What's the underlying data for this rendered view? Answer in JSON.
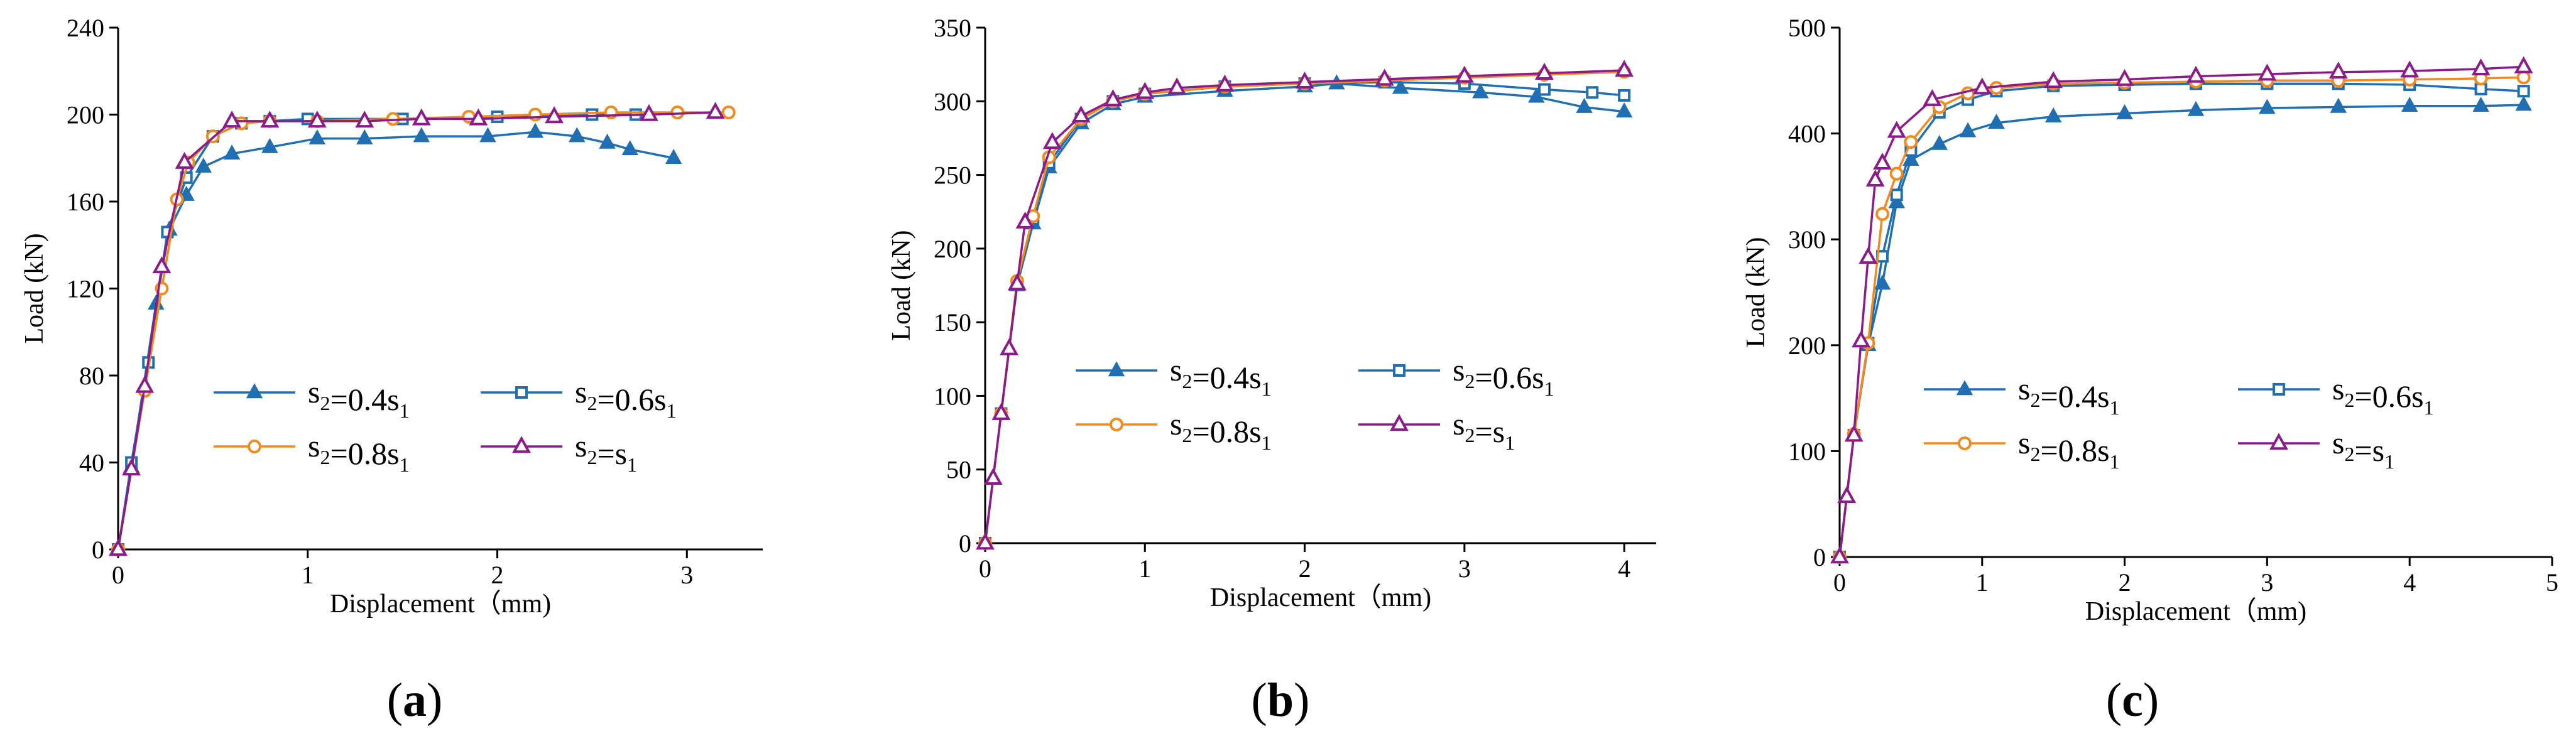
{
  "figure": {
    "panel_labels": [
      "(a)",
      "(b)",
      "(c)"
    ]
  },
  "legend_labels": [
    "s2=0.4s1",
    "s2=0.6s1",
    "s2=0.8s1",
    "s2=s1"
  ],
  "series_colors": [
    "#1f6fb2",
    "#1f6fb2",
    "#f28a1e",
    "#8b1a8b"
  ],
  "series_markers": [
    "filled-triangle",
    "open-square",
    "open-circle",
    "open-triangle"
  ],
  "chart_data": [
    {
      "type": "line",
      "panel": "(a)",
      "xlabel": "Displacement（mm)",
      "ylabel": "Load (kN)",
      "xlim": [
        0,
        3.4
      ],
      "ylim": [
        0,
        240
      ],
      "xticks": [
        0,
        1,
        2,
        3
      ],
      "yticks": [
        0,
        40,
        80,
        120,
        160,
        200,
        240
      ],
      "series": [
        {
          "name": "s2=0.4s1",
          "x": [
            0,
            0.07,
            0.2,
            0.27,
            0.36,
            0.45,
            0.6,
            0.8,
            1.05,
            1.3,
            1.6,
            1.95,
            2.2,
            2.42,
            2.58,
            2.7,
            2.93
          ],
          "y": [
            0,
            38,
            113,
            147,
            163,
            176,
            182,
            185,
            189,
            189,
            190,
            190,
            192,
            190,
            187,
            184,
            180
          ]
        },
        {
          "name": "s2=0.6s1",
          "x": [
            0,
            0.07,
            0.16,
            0.26,
            0.36,
            0.5,
            0.65,
            0.8,
            1.0,
            1.5,
            2.0,
            2.5,
            2.73
          ],
          "y": [
            0,
            40,
            86,
            146,
            171,
            190,
            196,
            197,
            198,
            198,
            199,
            200,
            200
          ]
        },
        {
          "name": "s2=0.8s1",
          "x": [
            0,
            0.14,
            0.23,
            0.31,
            0.37,
            0.5,
            0.65,
            0.8,
            1.05,
            1.45,
            1.85,
            2.2,
            2.6,
            2.95,
            3.22
          ],
          "y": [
            0,
            73,
            120,
            161,
            178,
            190,
            196,
            197,
            197,
            198,
            199,
            200,
            201,
            201,
            201
          ]
        },
        {
          "name": "s2=s1",
          "x": [
            0,
            0.07,
            0.14,
            0.23,
            0.35,
            0.6,
            0.8,
            1.05,
            1.3,
            1.6,
            1.9,
            2.3,
            2.8,
            3.15
          ],
          "y": [
            0,
            37,
            75,
            130,
            178,
            197,
            197,
            197,
            197,
            198,
            198,
            199,
            200,
            201
          ]
        }
      ],
      "legend_location": "right-middle"
    },
    {
      "type": "line",
      "panel": "(b)",
      "xlabel": "Displacement（mm)",
      "ylabel": "Load (kN)",
      "xlim": [
        0,
        4.2
      ],
      "ylim": [
        0,
        350
      ],
      "xticks": [
        0,
        1,
        2,
        3,
        4
      ],
      "yticks": [
        0,
        50,
        100,
        150,
        200,
        250,
        300,
        350
      ],
      "series": [
        {
          "name": "s2=0.4s1",
          "x": [
            0,
            0.1,
            0.2,
            0.3,
            0.4,
            0.6,
            0.8,
            1.0,
            1.5,
            2.0,
            2.2,
            2.6,
            3.1,
            3.45,
            3.75,
            4.0
          ],
          "y": [
            0,
            88,
            175,
            217,
            255,
            285,
            298,
            303,
            307,
            310,
            312,
            309,
            306,
            303,
            296,
            293
          ]
        },
        {
          "name": "s2=0.6s1",
          "x": [
            0,
            0.1,
            0.2,
            0.3,
            0.4,
            0.6,
            0.8,
            1.0,
            1.5,
            2.0,
            2.5,
            3.0,
            3.5,
            3.8,
            4.0
          ],
          "y": [
            0,
            88,
            176,
            220,
            258,
            288,
            300,
            305,
            310,
            312,
            313,
            312,
            308,
            306,
            304
          ]
        },
        {
          "name": "s2=0.8s1",
          "x": [
            0,
            0.1,
            0.2,
            0.3,
            0.4,
            0.6,
            0.8,
            1.0,
            1.5,
            2.0,
            2.5,
            3.0,
            3.5,
            4.0
          ],
          "y": [
            0,
            88,
            178,
            222,
            262,
            288,
            300,
            305,
            310,
            312,
            314,
            316,
            318,
            320
          ]
        },
        {
          "name": "s2=s1",
          "x": [
            0,
            0.05,
            0.1,
            0.15,
            0.2,
            0.25,
            0.42,
            0.6,
            0.8,
            1.0,
            1.2,
            1.5,
            2.0,
            2.5,
            3.0,
            3.5,
            4.0
          ],
          "y": [
            0,
            44,
            88,
            132,
            176,
            218,
            272,
            290,
            301,
            306,
            309,
            311,
            313,
            315,
            317,
            319,
            321
          ]
        }
      ],
      "legend_location": "right-middle"
    },
    {
      "type": "line",
      "panel": "(c)",
      "xlabel": "Displacement（mm)",
      "ylabel": "Load (kN)",
      "xlim": [
        0,
        5
      ],
      "ylim": [
        0,
        500
      ],
      "xticks": [
        0,
        1,
        2,
        3,
        4,
        5
      ],
      "yticks": [
        0,
        100,
        200,
        300,
        400,
        500
      ],
      "series": [
        {
          "name": "s2=0.4s1",
          "x": [
            0,
            0.1,
            0.2,
            0.3,
            0.4,
            0.5,
            0.7,
            0.9,
            1.1,
            1.5,
            2.0,
            2.5,
            3.0,
            3.5,
            4.0,
            4.5,
            4.8
          ],
          "y": [
            0,
            115,
            200,
            258,
            335,
            375,
            390,
            402,
            410,
            416,
            419,
            422,
            424,
            425,
            426,
            426,
            427
          ]
        },
        {
          "name": "s2=0.6s1",
          "x": [
            0,
            0.1,
            0.2,
            0.3,
            0.4,
            0.5,
            0.7,
            0.9,
            1.1,
            1.5,
            2.0,
            2.5,
            3.0,
            3.5,
            4.0,
            4.5,
            4.8
          ],
          "y": [
            0,
            115,
            202,
            284,
            342,
            384,
            420,
            432,
            440,
            445,
            446,
            447,
            447,
            447,
            446,
            442,
            440
          ]
        },
        {
          "name": "s2=0.8s1",
          "x": [
            0,
            0.1,
            0.2,
            0.3,
            0.4,
            0.5,
            0.7,
            0.9,
            1.1,
            1.5,
            2.0,
            2.5,
            3.0,
            3.5,
            4.0,
            4.5,
            4.8
          ],
          "y": [
            0,
            116,
            202,
            324,
            362,
            392,
            425,
            438,
            443,
            447,
            448,
            449,
            450,
            450,
            451,
            452,
            453
          ]
        },
        {
          "name": "s2=s1",
          "x": [
            0,
            0.05,
            0.1,
            0.15,
            0.2,
            0.25,
            0.3,
            0.4,
            0.65,
            1.0,
            1.5,
            2.0,
            2.5,
            3.0,
            3.5,
            4.0,
            4.5,
            4.8
          ],
          "y": [
            0,
            57,
            115,
            204,
            283,
            356,
            372,
            402,
            432,
            443,
            449,
            451,
            454,
            456,
            458,
            459,
            461,
            463
          ]
        }
      ],
      "legend_location": "right-middle"
    }
  ]
}
